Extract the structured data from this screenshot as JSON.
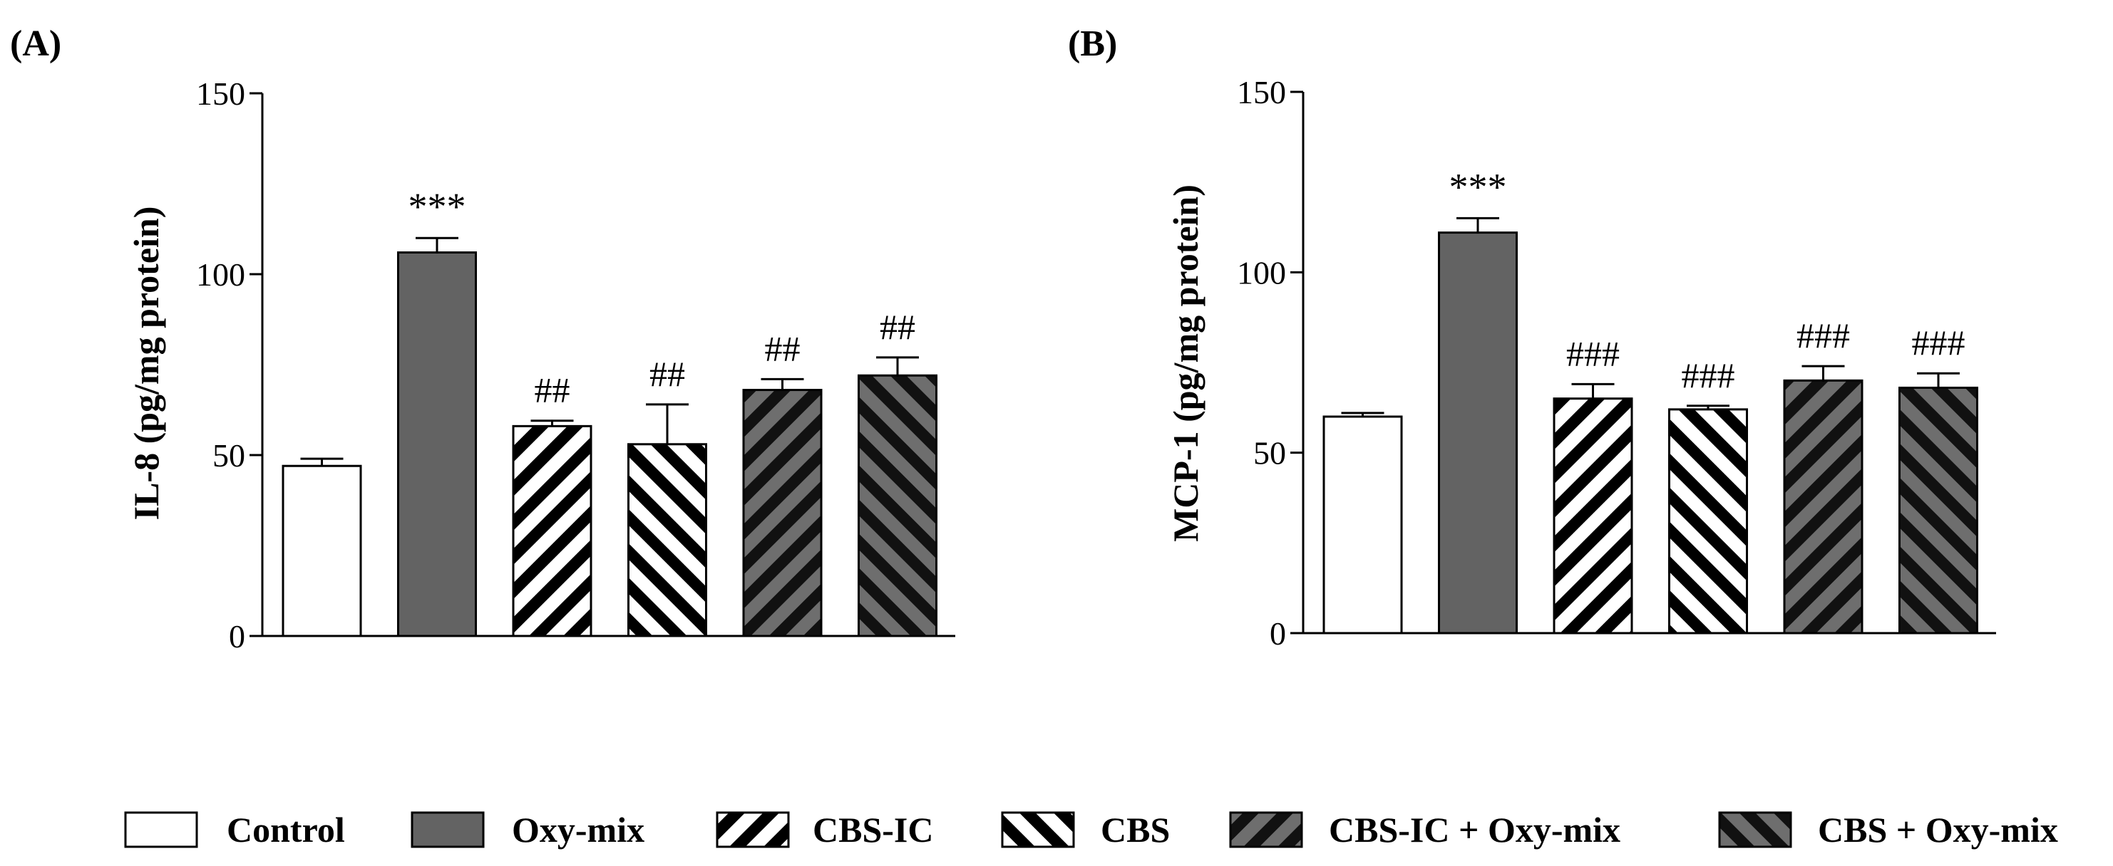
{
  "chart_data": [
    {
      "panel_label": "(A)",
      "type": "bar",
      "ylabel": "IL-8 (pg/mg protein)",
      "ylim": [
        0,
        150
      ],
      "yticks": [
        "0",
        "50",
        "100",
        "150"
      ],
      "categories": [
        "Control",
        "Oxy-mix",
        "CBS-IC",
        "CBS",
        "CBS-IC + Oxy-mix",
        "CBS + Oxy-mix"
      ],
      "values": [
        47,
        106,
        58,
        53,
        68,
        72
      ],
      "errors": [
        2,
        4,
        1.5,
        11,
        3,
        5
      ],
      "annotations": [
        "",
        "***",
        "##",
        "##",
        "##",
        "##"
      ]
    },
    {
      "panel_label": "(B)",
      "type": "bar",
      "ylabel": "MCP-1 (pg/mg protein)",
      "ylim": [
        0,
        150
      ],
      "yticks": [
        "0",
        "50",
        "100",
        "150"
      ],
      "categories": [
        "Control",
        "Oxy-mix",
        "CBS-IC",
        "CBS",
        "CBS-IC + Oxy-mix",
        "CBS + Oxy-mix"
      ],
      "values": [
        60,
        111,
        65,
        62,
        70,
        68
      ],
      "errors": [
        1,
        4,
        4,
        1,
        4,
        4
      ],
      "annotations": [
        "",
        "***",
        "###",
        "###",
        "###",
        "###"
      ]
    }
  ],
  "legend": {
    "items": [
      {
        "label": "Control",
        "fill": "white"
      },
      {
        "label": "Oxy-mix",
        "fill": "gray"
      },
      {
        "label": "CBS-IC",
        "fill": "hatch-forward"
      },
      {
        "label": "CBS",
        "fill": "hatch-back"
      },
      {
        "label": "CBS-IC + Oxy-mix",
        "fill": "gray-hatch-forward"
      },
      {
        "label": "CBS + Oxy-mix",
        "fill": "gray-hatch-back"
      }
    ]
  },
  "colors": {
    "bar_gray": "#636363",
    "hatch_dark": "#111111",
    "stroke": "#000000"
  }
}
